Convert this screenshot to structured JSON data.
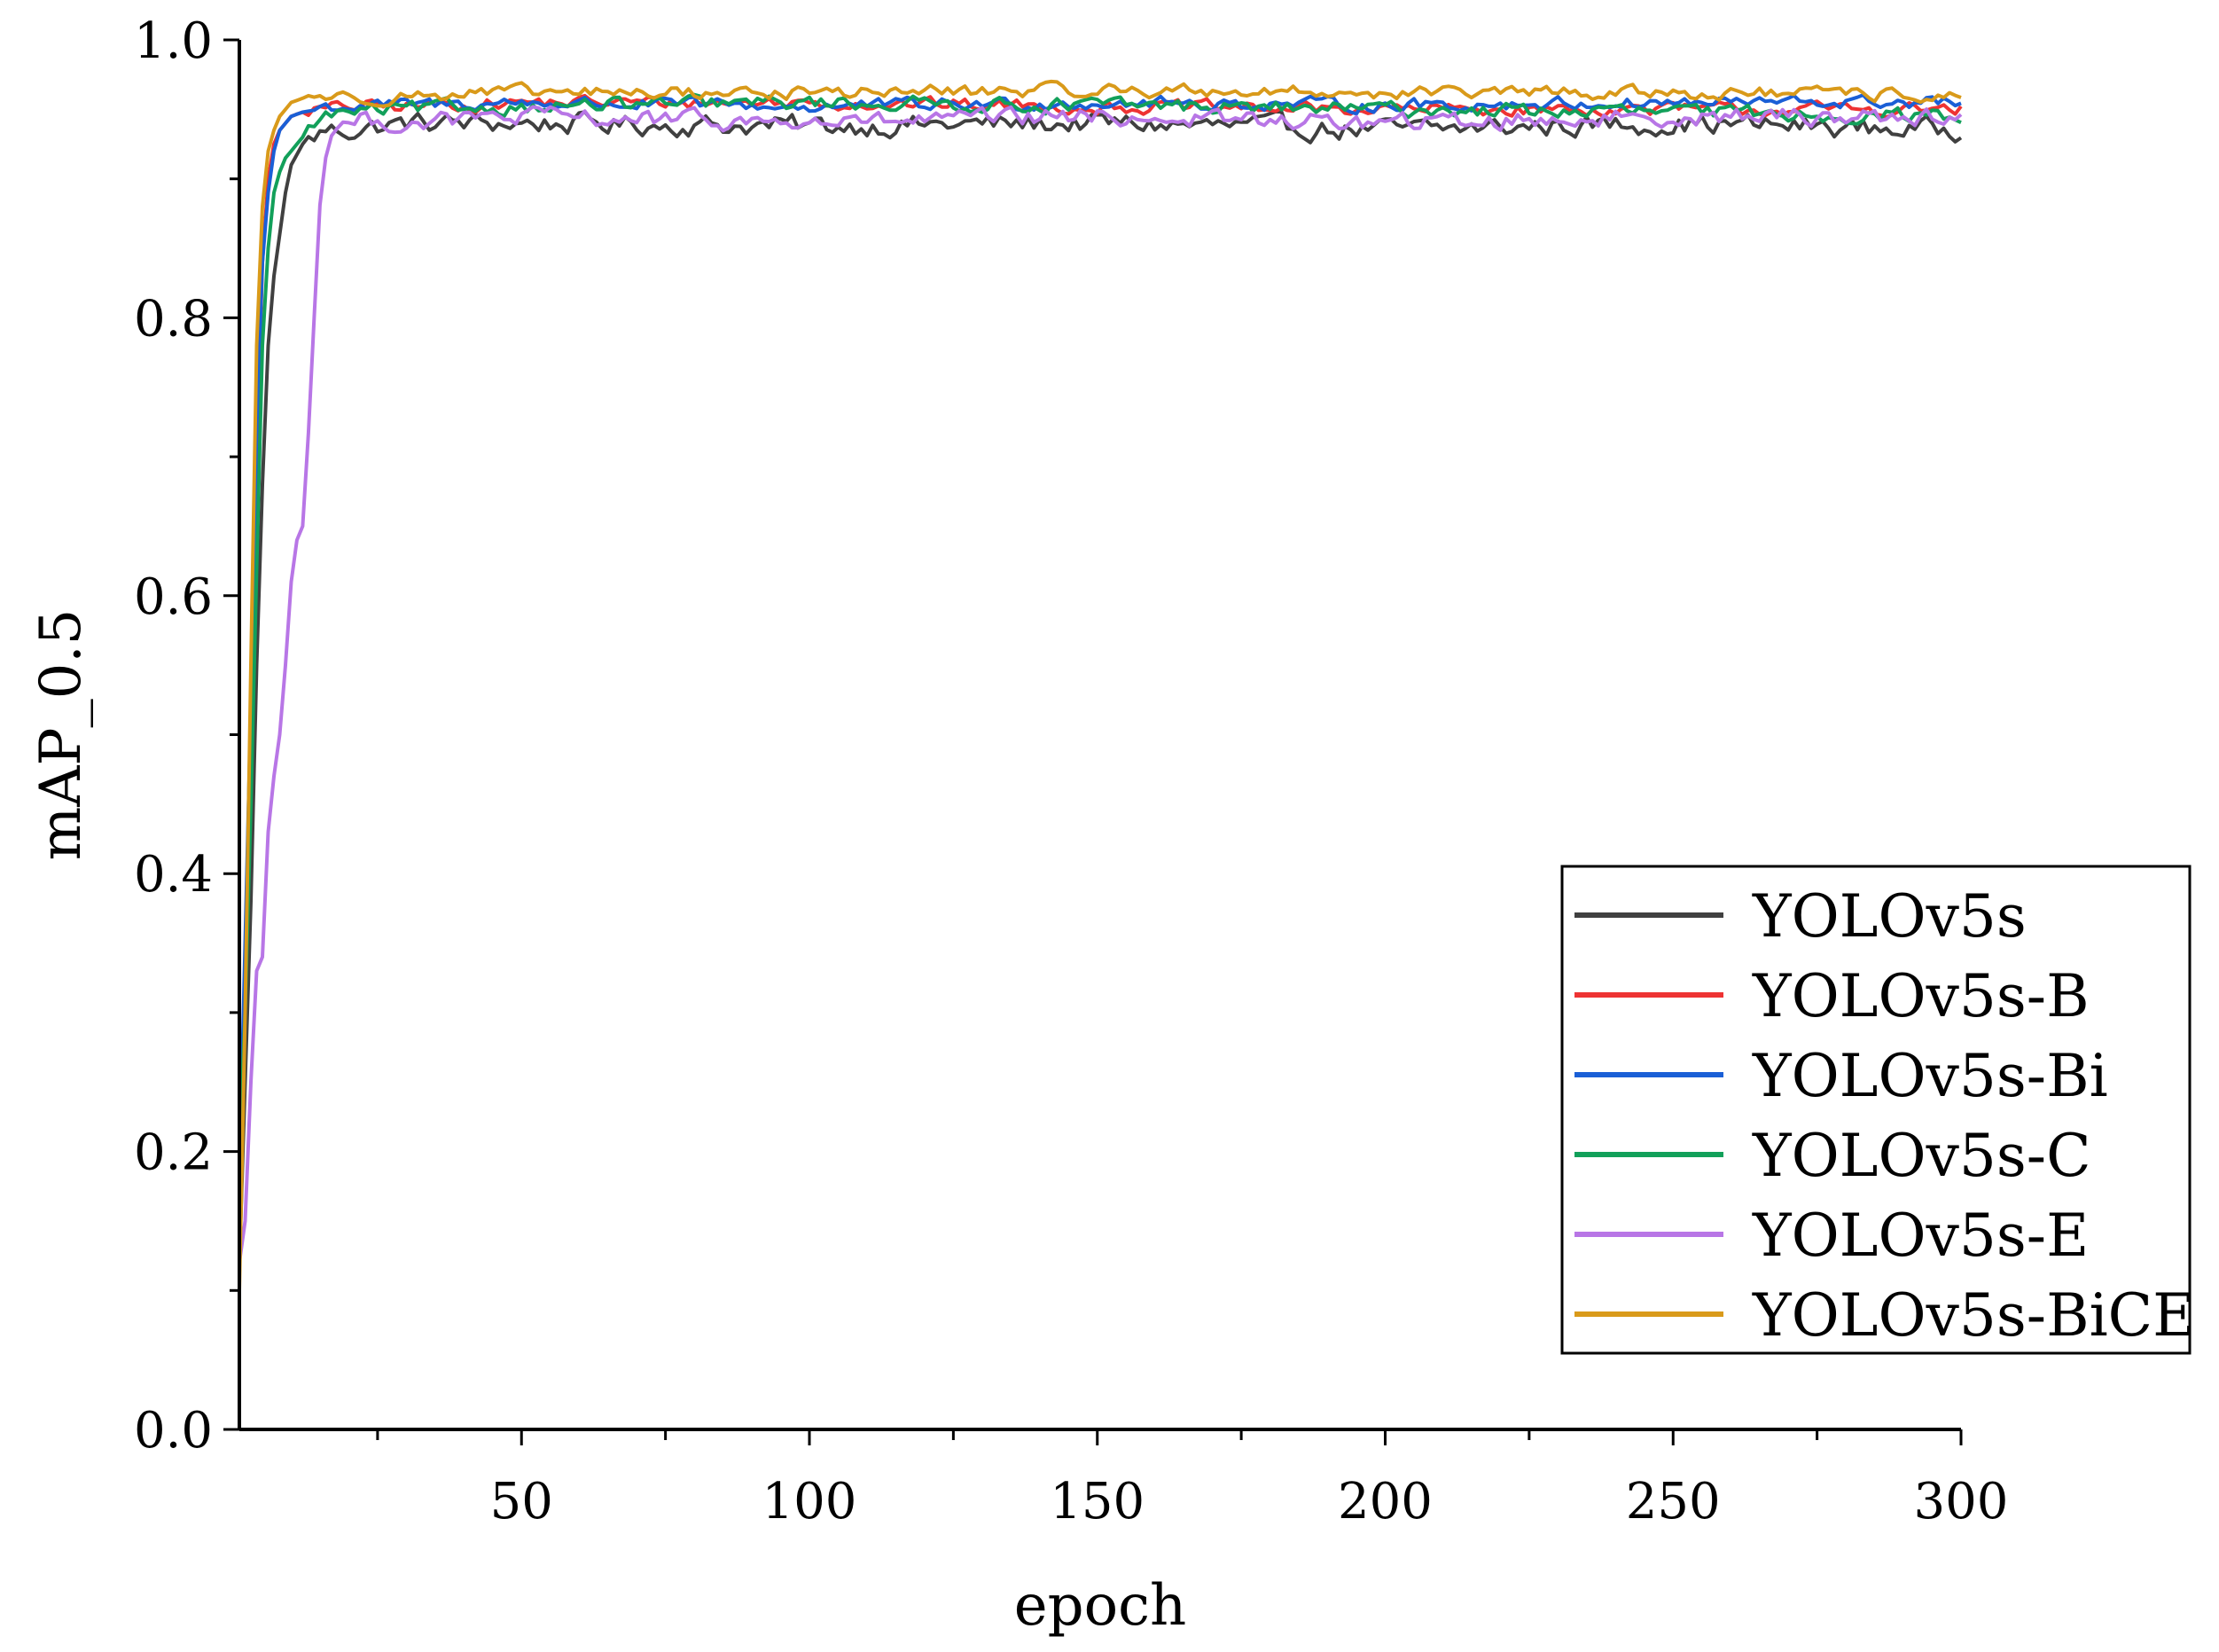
{
  "chart_data": {
    "type": "line",
    "title": "",
    "xlabel": "epoch",
    "ylabel": "mAP_0.5",
    "xlim": [
      1,
      300
    ],
    "ylim": [
      0.0,
      1.0
    ],
    "x_ticks": [
      50,
      100,
      150,
      200,
      250,
      300
    ],
    "y_ticks": [
      0.0,
      0.2,
      0.4,
      0.6,
      0.8,
      1.0
    ],
    "x_tick_labels": [
      "50",
      "100",
      "150",
      "200",
      "250",
      "300"
    ],
    "y_tick_labels": [
      "0.0",
      "0.2",
      "0.4",
      "0.6",
      "0.8",
      "1.0"
    ],
    "grid": false,
    "legend_position": "lower-right",
    "series": [
      {
        "name": "YOLOv5s",
        "color": "#404040",
        "noise": 0.0065,
        "x": [
          1,
          2,
          3,
          4,
          5,
          6,
          7,
          8,
          9,
          10,
          12,
          14,
          16,
          20,
          30,
          50,
          100,
          150,
          200,
          250,
          300
        ],
        "y": [
          0.12,
          0.25,
          0.38,
          0.55,
          0.68,
          0.78,
          0.83,
          0.86,
          0.89,
          0.91,
          0.925,
          0.93,
          0.935,
          0.935,
          0.94,
          0.94,
          0.938,
          0.94,
          0.935,
          0.94,
          0.935
        ]
      },
      {
        "name": "YOLOv5s-B",
        "color": "#ee3333",
        "noise": 0.004,
        "x": [
          1,
          2,
          3,
          4,
          5,
          6,
          7,
          8,
          9,
          10,
          12,
          14,
          16,
          20,
          30,
          50,
          100,
          150,
          200,
          250,
          300
        ],
        "y": [
          0.15,
          0.32,
          0.5,
          0.7,
          0.84,
          0.9,
          0.925,
          0.935,
          0.94,
          0.945,
          0.948,
          0.95,
          0.95,
          0.952,
          0.952,
          0.955,
          0.955,
          0.952,
          0.95,
          0.95,
          0.95
        ]
      },
      {
        "name": "YOLOv5s-Bi",
        "color": "#1a5fd6",
        "noise": 0.004,
        "x": [
          1,
          2,
          3,
          4,
          5,
          6,
          7,
          8,
          9,
          10,
          12,
          14,
          16,
          20,
          30,
          50,
          100,
          150,
          200,
          250,
          300
        ],
        "y": [
          0.18,
          0.35,
          0.52,
          0.72,
          0.84,
          0.89,
          0.92,
          0.935,
          0.94,
          0.945,
          0.948,
          0.95,
          0.952,
          0.952,
          0.953,
          0.955,
          0.952,
          0.955,
          0.953,
          0.955,
          0.955
        ]
      },
      {
        "name": "YOLOv5s-C",
        "color": "#12a05a",
        "noise": 0.0045,
        "x": [
          1,
          2,
          3,
          4,
          5,
          6,
          7,
          8,
          9,
          10,
          12,
          14,
          16,
          20,
          30,
          50,
          100,
          150,
          200,
          250,
          300
        ],
        "y": [
          0.2,
          0.3,
          0.45,
          0.62,
          0.78,
          0.85,
          0.89,
          0.905,
          0.915,
          0.92,
          0.93,
          0.94,
          0.945,
          0.948,
          0.95,
          0.952,
          0.955,
          0.953,
          0.95,
          0.948,
          0.945
        ]
      },
      {
        "name": "YOLOv5s-E",
        "color": "#b876e6",
        "noise": 0.0055,
        "x": [
          1,
          2,
          3,
          4,
          5,
          6,
          7,
          8,
          9,
          10,
          11,
          12,
          13,
          14,
          15,
          16,
          17,
          18,
          20,
          22,
          30,
          50,
          100,
          150,
          200,
          250,
          300
        ],
        "y": [
          0.12,
          0.15,
          0.25,
          0.33,
          0.34,
          0.43,
          0.47,
          0.5,
          0.55,
          0.61,
          0.64,
          0.65,
          0.72,
          0.8,
          0.88,
          0.92,
          0.935,
          0.94,
          0.94,
          0.942,
          0.94,
          0.945,
          0.94,
          0.945,
          0.94,
          0.945,
          0.945
        ]
      },
      {
        "name": "YOLOv5s-BiCE",
        "color": "#d99a1a",
        "noise": 0.004,
        "x": [
          1,
          2,
          3,
          4,
          5,
          6,
          7,
          8,
          9,
          10,
          12,
          14,
          16,
          20,
          30,
          50,
          100,
          150,
          200,
          250,
          300
        ],
        "y": [
          0.1,
          0.3,
          0.55,
          0.78,
          0.88,
          0.92,
          0.935,
          0.945,
          0.95,
          0.955,
          0.958,
          0.96,
          0.96,
          0.958,
          0.96,
          0.962,
          0.962,
          0.964,
          0.962,
          0.962,
          0.96
        ]
      }
    ]
  }
}
